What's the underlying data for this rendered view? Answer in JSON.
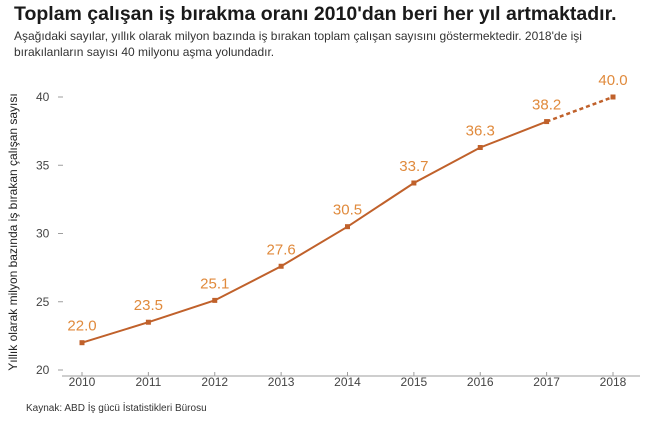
{
  "chart_data": {
    "type": "line",
    "title": "Toplam çalışan iş bırakma oranı 2010'dan beri her yıl artmaktadır.",
    "subtitle": "Aşağıdaki sayılar, yıllık olarak milyon bazında iş bırakan toplam çalışan sayısını göstermektedir. 2018'de işi bırakılanların sayısı 40 milyonu aşma yolundadır.",
    "xlabel": "",
    "ylabel": "Yıllık olarak milyon bazında iş bırakan çalışan sayısı",
    "x": [
      "2010",
      "2011",
      "2012",
      "2013",
      "2014",
      "2015",
      "2016",
      "2017",
      "2018"
    ],
    "series": [
      {
        "values": [
          22.0,
          23.5,
          25.1,
          27.6,
          30.5,
          33.7,
          36.3,
          38.2,
          40.0
        ],
        "data_labels": [
          "22.0",
          "23.5",
          "25.1",
          "27.6",
          "30.5",
          "33.7",
          "36.3",
          "38.2",
          "40.0"
        ],
        "projected_from_index": 7
      }
    ],
    "ylim": [
      20,
      40
    ],
    "yticks": [
      "20",
      "25",
      "30",
      "35",
      "40"
    ],
    "grid": false,
    "colors": {
      "line": "#c0612b",
      "label": "#e08a3c",
      "axis": "#9e9e9e"
    },
    "source": "Kaynak: ABD İş gücü İstatistikleri Bürosu"
  }
}
